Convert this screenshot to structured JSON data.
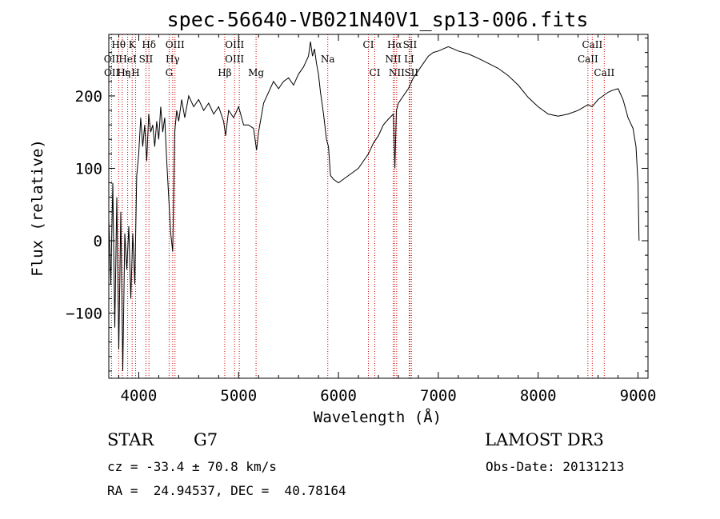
{
  "chart_data": {
    "type": "line",
    "title": "spec-56640-VB021N40V1_sp13-006.fits",
    "xlabel": "Wavelength (Å)",
    "ylabel": "Flux (relative)",
    "xlim": [
      3700,
      9100
    ],
    "ylim": [
      -190,
      285
    ],
    "xticks": [
      4000,
      5000,
      6000,
      7000,
      8000,
      9000
    ],
    "yticks": [
      -100,
      0,
      100,
      200
    ],
    "grid": false,
    "series": [
      {
        "points": [
          [
            3700,
            30
          ],
          [
            3720,
            -60
          ],
          [
            3740,
            80
          ],
          [
            3760,
            -120
          ],
          [
            3780,
            60
          ],
          [
            3800,
            -150
          ],
          [
            3820,
            40
          ],
          [
            3840,
            -180
          ],
          [
            3860,
            10
          ],
          [
            3880,
            -40
          ],
          [
            3900,
            20
          ],
          [
            3920,
            -80
          ],
          [
            3940,
            10
          ],
          [
            3960,
            -60
          ],
          [
            3980,
            90
          ],
          [
            4000,
            120
          ],
          [
            4020,
            170
          ],
          [
            4040,
            130
          ],
          [
            4060,
            160
          ],
          [
            4080,
            110
          ],
          [
            4100,
            175
          ],
          [
            4120,
            150
          ],
          [
            4140,
            160
          ],
          [
            4160,
            130
          ],
          [
            4180,
            165
          ],
          [
            4200,
            140
          ],
          [
            4220,
            185
          ],
          [
            4240,
            150
          ],
          [
            4260,
            170
          ],
          [
            4280,
            110
          ],
          [
            4300,
            60
          ],
          [
            4320,
            10
          ],
          [
            4340,
            -15
          ],
          [
            4360,
            150
          ],
          [
            4380,
            180
          ],
          [
            4400,
            165
          ],
          [
            4430,
            195
          ],
          [
            4460,
            170
          ],
          [
            4500,
            200
          ],
          [
            4550,
            185
          ],
          [
            4600,
            195
          ],
          [
            4650,
            180
          ],
          [
            4700,
            190
          ],
          [
            4750,
            175
          ],
          [
            4800,
            185
          ],
          [
            4850,
            165
          ],
          [
            4870,
            145
          ],
          [
            4900,
            180
          ],
          [
            4950,
            170
          ],
          [
            5000,
            185
          ],
          [
            5050,
            160
          ],
          [
            5100,
            160
          ],
          [
            5150,
            155
          ],
          [
            5180,
            125
          ],
          [
            5200,
            150
          ],
          [
            5250,
            190
          ],
          [
            5300,
            205
          ],
          [
            5350,
            220
          ],
          [
            5400,
            210
          ],
          [
            5450,
            220
          ],
          [
            5500,
            225
          ],
          [
            5550,
            215
          ],
          [
            5600,
            230
          ],
          [
            5650,
            240
          ],
          [
            5700,
            255
          ],
          [
            5720,
            275
          ],
          [
            5740,
            255
          ],
          [
            5760,
            265
          ],
          [
            5780,
            245
          ],
          [
            5800,
            230
          ],
          [
            5820,
            205
          ],
          [
            5850,
            175
          ],
          [
            5880,
            140
          ],
          [
            5900,
            130
          ],
          [
            5920,
            90
          ],
          [
            5950,
            85
          ],
          [
            6000,
            80
          ],
          [
            6050,
            85
          ],
          [
            6100,
            90
          ],
          [
            6150,
            95
          ],
          [
            6200,
            100
          ],
          [
            6250,
            110
          ],
          [
            6300,
            120
          ],
          [
            6350,
            135
          ],
          [
            6400,
            145
          ],
          [
            6450,
            160
          ],
          [
            6500,
            168
          ],
          [
            6550,
            175
          ],
          [
            6565,
            100
          ],
          [
            6580,
            180
          ],
          [
            6600,
            190
          ],
          [
            6650,
            200
          ],
          [
            6700,
            210
          ],
          [
            6750,
            225
          ],
          [
            6800,
            235
          ],
          [
            6850,
            245
          ],
          [
            6900,
            255
          ],
          [
            6950,
            260
          ],
          [
            7000,
            262
          ],
          [
            7050,
            265
          ],
          [
            7100,
            268
          ],
          [
            7150,
            265
          ],
          [
            7200,
            262
          ],
          [
            7300,
            258
          ],
          [
            7400,
            252
          ],
          [
            7500,
            245
          ],
          [
            7600,
            238
          ],
          [
            7700,
            228
          ],
          [
            7800,
            215
          ],
          [
            7900,
            198
          ],
          [
            8000,
            185
          ],
          [
            8100,
            175
          ],
          [
            8200,
            172
          ],
          [
            8300,
            175
          ],
          [
            8400,
            180
          ],
          [
            8500,
            188
          ],
          [
            8540,
            185
          ],
          [
            8600,
            195
          ],
          [
            8650,
            200
          ],
          [
            8700,
            205
          ],
          [
            8750,
            208
          ],
          [
            8800,
            210
          ],
          [
            8850,
            195
          ],
          [
            8900,
            170
          ],
          [
            8950,
            155
          ],
          [
            8980,
            130
          ],
          [
            9000,
            80
          ],
          [
            9010,
            0
          ]
        ]
      }
    ],
    "line_labels": [
      {
        "label": "Hθ",
        "wavelength": 3798,
        "row": 0
      },
      {
        "label": "K",
        "wavelength": 3934,
        "row": 0
      },
      {
        "label": "Hδ",
        "wavelength": 4102,
        "row": 0
      },
      {
        "label": "OIII",
        "wavelength": 4363,
        "row": 0
      },
      {
        "label": "OIII",
        "wavelength": 4960,
        "row": 0
      },
      {
        "label": "CI",
        "wavelength": 6300,
        "row": 0
      },
      {
        "label": "Hα",
        "wavelength": 6563,
        "row": 0
      },
      {
        "label": "SII",
        "wavelength": 6716,
        "row": 0
      },
      {
        "label": "CaII",
        "wavelength": 8542,
        "row": 0
      },
      {
        "label": "OII",
        "wavelength": 3727,
        "row": 1
      },
      {
        "label": "HeI",
        "wavelength": 3889,
        "row": 1
      },
      {
        "label": "SII",
        "wavelength": 4072,
        "row": 1
      },
      {
        "label": "Hγ",
        "wavelength": 4340,
        "row": 1
      },
      {
        "label": "OIII",
        "wavelength": 4959,
        "row": 1
      },
      {
        "label": "Na",
        "wavelength": 5893,
        "row": 1
      },
      {
        "label": "NII",
        "wavelength": 6548,
        "row": 1
      },
      {
        "label": "LI",
        "wavelength": 6708,
        "row": 1
      },
      {
        "label": "CaII",
        "wavelength": 8498,
        "row": 1
      },
      {
        "label": "OII",
        "wavelength": 3729,
        "row": 2
      },
      {
        "label": "Hε",
        "wavelength": 3850,
        "row": 2
      },
      {
        "label": "η",
        "wavelength": 3889,
        "row": 2
      },
      {
        "label": "H",
        "wavelength": 3968,
        "row": 2
      },
      {
        "label": "G",
        "wavelength": 4304,
        "row": 2
      },
      {
        "label": "Hβ",
        "wavelength": 4861,
        "row": 2
      },
      {
        "label": "Mg",
        "wavelength": 5175,
        "row": 2
      },
      {
        "label": "CI",
        "wavelength": 6364,
        "row": 2
      },
      {
        "label": "NII",
        "wavelength": 6583,
        "row": 2
      },
      {
        "label": "SII",
        "wavelength": 6731,
        "row": 2
      },
      {
        "label": "CaII",
        "wavelength": 8662,
        "row": 2
      }
    ],
    "line_wavelengths": [
      3727,
      3798,
      3835,
      3889,
      3934,
      3968,
      4072,
      4102,
      4304,
      4340,
      4363,
      4861,
      4959,
      5007,
      5175,
      5893,
      6300,
      6364,
      6548,
      6563,
      6583,
      6708,
      6716,
      6731,
      8498,
      8542,
      8662
    ],
    "marker_color": "#cc0000"
  },
  "info": {
    "object_type": "STAR",
    "subclass": "G7",
    "survey": "LAMOST DR3",
    "cz": "cz = -33.4 ± 70.8 km/s",
    "obs_date": "Obs-Date: 20131213",
    "coords": "RA =  24.94537, DEC =  40.78164"
  }
}
